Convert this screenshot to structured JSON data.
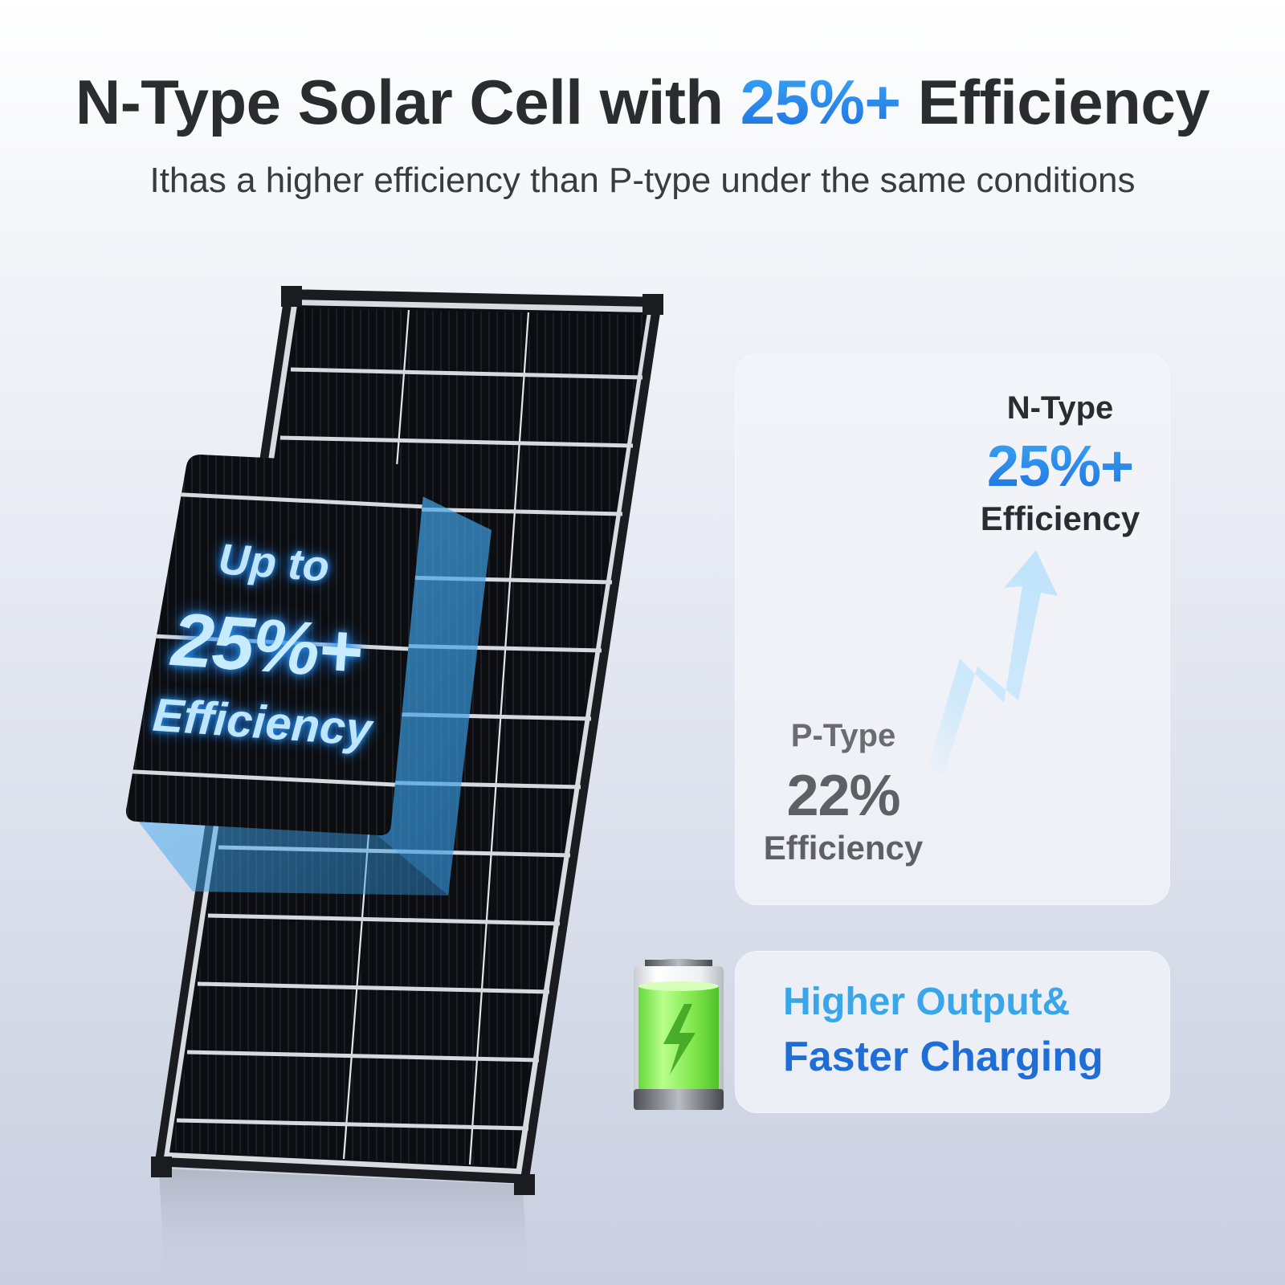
{
  "header": {
    "title_part1": "N-Type Solar Cell with ",
    "title_accent": "25%+",
    "title_part2": " Efficiency",
    "subtitle": "Ithas a higher efficiency than P-type under the same conditions"
  },
  "panel_callout": {
    "line1": "Up to",
    "line2": "25%+",
    "line3": "Efficiency"
  },
  "comparison": {
    "n_type": {
      "label": "N-Type",
      "value": "25%+",
      "caption": "Efficiency"
    },
    "p_type": {
      "label": "P-Type",
      "value": "22%",
      "caption": "Efficiency"
    }
  },
  "output_card": {
    "line1": "Higher Output&",
    "line2": "Faster Charging"
  },
  "icons": [
    "solar-panel-image",
    "zoomed-cell-image",
    "rising-arrow-icon",
    "battery-icon"
  ],
  "colors": {
    "accent_blue": "#1f6fe0",
    "accent_light_blue": "#39a6ea",
    "text_dark": "#2b2c30",
    "text_gray": "#5e6066",
    "battery_green": "#6ee040"
  }
}
